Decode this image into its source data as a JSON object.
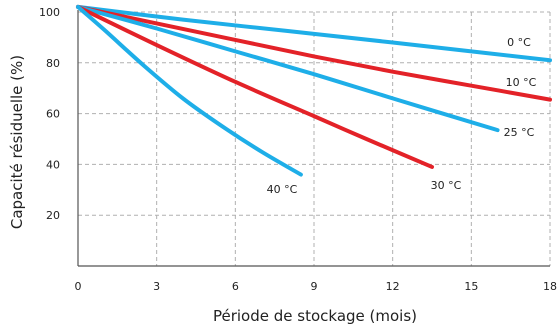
{
  "chart_data": {
    "type": "line",
    "xlabel": "Période de stockage (mois)",
    "ylabel": "Capacité résiduelle (%)",
    "xlim": [
      0,
      18
    ],
    "ylim": [
      0,
      100
    ],
    "x_ticks": [
      0,
      3,
      6,
      9,
      12,
      15,
      18
    ],
    "y_ticks": [
      20,
      40,
      60,
      80,
      100
    ],
    "grid": true,
    "series": [
      {
        "name": "0 °C",
        "color": "#1eaee8",
        "points": [
          [
            0,
            102
          ],
          [
            4,
            97
          ],
          [
            8,
            92.5
          ],
          [
            12,
            88
          ],
          [
            18,
            81
          ]
        ]
      },
      {
        "name": "10 °C",
        "color": "#e32228",
        "points": [
          [
            0,
            102
          ],
          [
            3,
            95.5
          ],
          [
            6,
            89
          ],
          [
            9,
            82.5
          ],
          [
            12,
            76.5
          ],
          [
            15,
            71
          ],
          [
            18,
            65.5
          ]
        ]
      },
      {
        "name": "25 °C",
        "color": "#1eaee8",
        "points": [
          [
            0,
            102
          ],
          [
            3,
            93.5
          ],
          [
            6,
            84.5
          ],
          [
            9,
            75.5
          ],
          [
            12,
            66
          ],
          [
            16,
            53.5
          ]
        ]
      },
      {
        "name": "30 °C",
        "color": "#e32228",
        "points": [
          [
            0,
            102
          ],
          [
            3,
            87
          ],
          [
            6,
            72.5
          ],
          [
            9,
            59
          ],
          [
            11,
            50
          ],
          [
            13.5,
            39
          ]
        ]
      },
      {
        "name": "40 °C",
        "color": "#1eaee8",
        "points": [
          [
            0,
            102
          ],
          [
            1,
            93
          ],
          [
            2.5,
            79
          ],
          [
            4,
            66
          ],
          [
            5.5,
            55
          ],
          [
            7,
            45
          ],
          [
            8.5,
            36
          ]
        ]
      }
    ]
  }
}
